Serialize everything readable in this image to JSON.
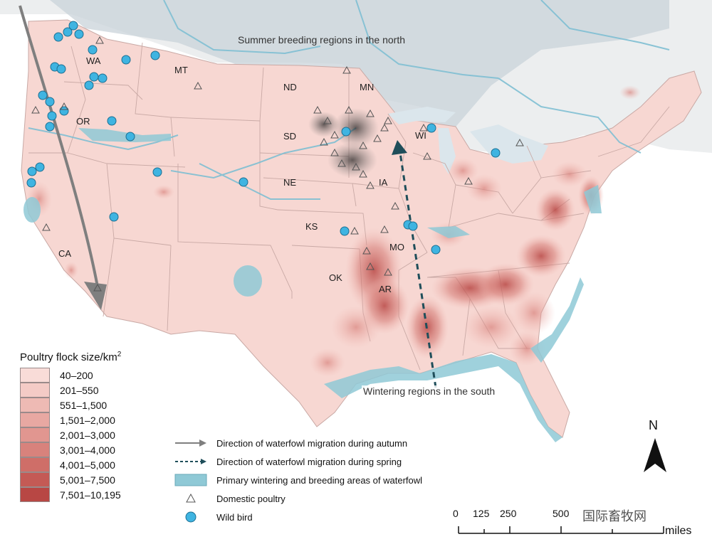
{
  "map": {
    "region_labels": {
      "north": "Summer breeding regions in the north",
      "south": "Wintering regions in the south"
    },
    "state_labels": [
      "WA",
      "MT",
      "ND",
      "MN",
      "OR",
      "SD",
      "WI",
      "NE",
      "IA",
      "KS",
      "MO",
      "CA",
      "OK",
      "AR"
    ]
  },
  "legend": {
    "title": "Poultry flock size/km",
    "title_superscript": "2",
    "items": [
      {
        "label": "40–200",
        "color": "#f9dcd8"
      },
      {
        "label": "201–550",
        "color": "#f4cbc6"
      },
      {
        "label": "551–1,500",
        "color": "#eebab4"
      },
      {
        "label": "1,501–2,000",
        "color": "#e8a8a2"
      },
      {
        "label": "2,001–3,000",
        "color": "#e19690"
      },
      {
        "label": "3,001–4,000",
        "color": "#d8827c"
      },
      {
        "label": "4,001–5,000",
        "color": "#cf6e68"
      },
      {
        "label": "5,001–7,500",
        "color": "#c45a55"
      },
      {
        "label": "7,501–10,195",
        "color": "#b84744"
      }
    ]
  },
  "key": {
    "autumn": "Direction of waterfowl migration during autumn",
    "spring": "Direction of waterfowl migration during spring",
    "areas": "Primary wintering and breeding areas of waterfowl",
    "poultry": "Domestic poultry",
    "wild": "Wild bird"
  },
  "scale": {
    "ticks": [
      "0",
      "125",
      "250",
      "500"
    ],
    "unit": "miles"
  },
  "north_arrow": "N",
  "watermark": "国际畜牧网",
  "colors": {
    "land": "#f7d7d2",
    "waterfowl_area": "#8fc9d6",
    "wild_bird": "#3fb4e1",
    "north_shade": "#c9d3da",
    "spring_arrow": "#1f4e5a",
    "autumn_arrow": "#7f7f7f"
  }
}
